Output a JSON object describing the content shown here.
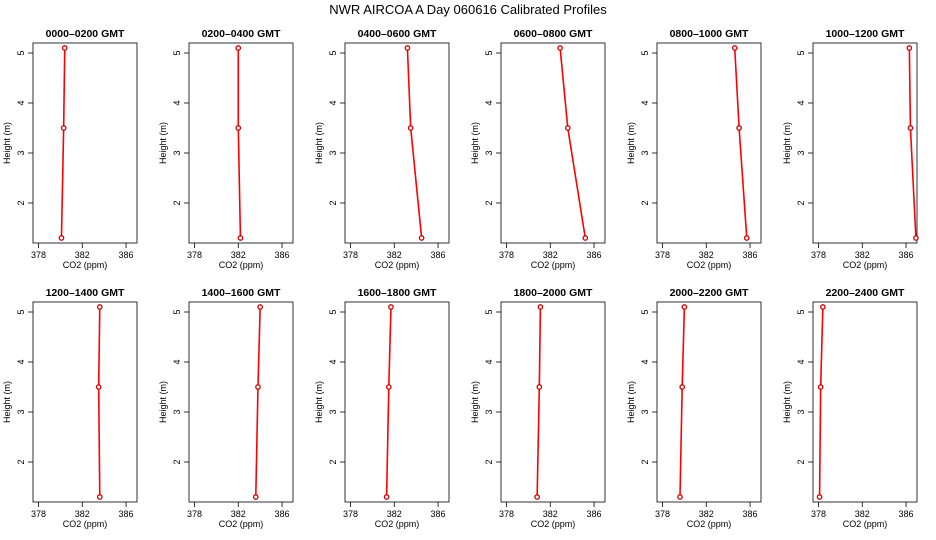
{
  "title": "NWR AIRCOA A  Day 060616  Calibrated Profiles",
  "colors": {
    "line": "#ff0000",
    "marker": "#cc0000",
    "axis": "#000000"
  },
  "chart_data": [
    {
      "type": "line",
      "title": "0000–0200 GMT",
      "xlabel": "CO2 (ppm)",
      "ylabel": "Height (m)",
      "xlim": [
        377.5,
        387
      ],
      "ylim": [
        1.2,
        5.2
      ],
      "xticks": [
        378,
        382,
        386
      ],
      "xtick_labels": [
        "378",
        "382",
        "386"
      ],
      "yticks": [
        2,
        3,
        4,
        5
      ],
      "ytick_labels": [
        "2",
        "3",
        "4",
        "5"
      ],
      "grid": false,
      "points": [
        {
          "x": 380.1,
          "y": 1.3
        },
        {
          "x": 380.3,
          "y": 3.5
        },
        {
          "x": 380.4,
          "y": 5.1
        }
      ]
    },
    {
      "type": "line",
      "title": "0200–0400 GMT",
      "xlabel": "CO2 (ppm)",
      "ylabel": "Height (m)",
      "xlim": [
        377.5,
        387
      ],
      "ylim": [
        1.2,
        5.2
      ],
      "xticks": [
        378,
        382,
        386
      ],
      "xtick_labels": [
        "378",
        "382",
        "386"
      ],
      "yticks": [
        2,
        3,
        4,
        5
      ],
      "ytick_labels": [
        "2",
        "3",
        "4",
        "5"
      ],
      "grid": false,
      "points": [
        {
          "x": 382.2,
          "y": 1.3
        },
        {
          "x": 382.0,
          "y": 3.5
        },
        {
          "x": 382.0,
          "y": 5.1
        }
      ]
    },
    {
      "type": "line",
      "title": "0400–0600 GMT",
      "xlabel": "CO2 (ppm)",
      "ylabel": "Height (m)",
      "xlim": [
        377.5,
        387
      ],
      "ylim": [
        1.2,
        5.2
      ],
      "xticks": [
        378,
        382,
        386
      ],
      "xtick_labels": [
        "378",
        "382",
        "386"
      ],
      "yticks": [
        2,
        3,
        4,
        5
      ],
      "ytick_labels": [
        "2",
        "3",
        "4",
        "5"
      ],
      "grid": false,
      "points": [
        {
          "x": 384.5,
          "y": 1.3
        },
        {
          "x": 383.5,
          "y": 3.5
        },
        {
          "x": 383.2,
          "y": 5.1
        }
      ]
    },
    {
      "type": "line",
      "title": "0600–0800 GMT",
      "xlabel": "CO2 (ppm)",
      "ylabel": "Height (m)",
      "xlim": [
        377.5,
        387
      ],
      "ylim": [
        1.2,
        5.2
      ],
      "xticks": [
        378,
        382,
        386
      ],
      "xtick_labels": [
        "378",
        "382",
        "386"
      ],
      "yticks": [
        2,
        3,
        4,
        5
      ],
      "ytick_labels": [
        "2",
        "3",
        "4",
        "5"
      ],
      "grid": false,
      "points": [
        {
          "x": 385.2,
          "y": 1.3
        },
        {
          "x": 383.6,
          "y": 3.5
        },
        {
          "x": 382.9,
          "y": 5.1
        }
      ]
    },
    {
      "type": "line",
      "title": "0800–1000 GMT",
      "xlabel": "CO2 (ppm)",
      "ylabel": "Height (m)",
      "xlim": [
        377.5,
        387
      ],
      "ylim": [
        1.2,
        5.2
      ],
      "xticks": [
        378,
        382,
        386
      ],
      "xtick_labels": [
        "378",
        "382",
        "386"
      ],
      "yticks": [
        2,
        3,
        4,
        5
      ],
      "ytick_labels": [
        "2",
        "3",
        "4",
        "5"
      ],
      "grid": false,
      "points": [
        {
          "x": 385.7,
          "y": 1.3
        },
        {
          "x": 385.0,
          "y": 3.5
        },
        {
          "x": 384.6,
          "y": 5.1
        }
      ]
    },
    {
      "type": "line",
      "title": "1000–1200 GMT",
      "xlabel": "CO2 (ppm)",
      "ylabel": "Height (m)",
      "xlim": [
        377.5,
        387
      ],
      "ylim": [
        1.2,
        5.2
      ],
      "xticks": [
        378,
        382,
        386
      ],
      "xtick_labels": [
        "378",
        "382",
        "386"
      ],
      "yticks": [
        2,
        3,
        4,
        5
      ],
      "ytick_labels": [
        "2",
        "3",
        "4",
        "5"
      ],
      "grid": false,
      "points": [
        {
          "x": 386.9,
          "y": 1.3
        },
        {
          "x": 386.4,
          "y": 3.5
        },
        {
          "x": 386.3,
          "y": 5.1
        }
      ]
    },
    {
      "type": "line",
      "title": "1200–1400 GMT",
      "xlabel": "CO2 (ppm)",
      "ylabel": "Height (m)",
      "xlim": [
        377.5,
        387
      ],
      "ylim": [
        1.2,
        5.2
      ],
      "xticks": [
        378,
        382,
        386
      ],
      "xtick_labels": [
        "378",
        "382",
        "386"
      ],
      "yticks": [
        2,
        3,
        4,
        5
      ],
      "ytick_labels": [
        "2",
        "3",
        "4",
        "5"
      ],
      "grid": false,
      "points": [
        {
          "x": 383.6,
          "y": 1.3
        },
        {
          "x": 383.5,
          "y": 3.5
        },
        {
          "x": 383.6,
          "y": 5.1
        }
      ]
    },
    {
      "type": "line",
      "title": "1400–1600 GMT",
      "xlabel": "CO2 (ppm)",
      "ylabel": "Height (m)",
      "xlim": [
        377.5,
        387
      ],
      "ylim": [
        1.2,
        5.2
      ],
      "xticks": [
        378,
        382,
        386
      ],
      "xtick_labels": [
        "378",
        "382",
        "386"
      ],
      "yticks": [
        2,
        3,
        4,
        5
      ],
      "ytick_labels": [
        "2",
        "3",
        "4",
        "5"
      ],
      "grid": false,
      "points": [
        {
          "x": 383.6,
          "y": 1.3
        },
        {
          "x": 383.8,
          "y": 3.5
        },
        {
          "x": 384.0,
          "y": 5.1
        }
      ]
    },
    {
      "type": "line",
      "title": "1600–1800 GMT",
      "xlabel": "CO2 (ppm)",
      "ylabel": "Height (m)",
      "xlim": [
        377.5,
        387
      ],
      "ylim": [
        1.2,
        5.2
      ],
      "xticks": [
        378,
        382,
        386
      ],
      "xtick_labels": [
        "378",
        "382",
        "386"
      ],
      "yticks": [
        2,
        3,
        4,
        5
      ],
      "ytick_labels": [
        "2",
        "3",
        "4",
        "5"
      ],
      "grid": false,
      "points": [
        {
          "x": 381.3,
          "y": 1.3
        },
        {
          "x": 381.5,
          "y": 3.5
        },
        {
          "x": 381.7,
          "y": 5.1
        }
      ]
    },
    {
      "type": "line",
      "title": "1800–2000 GMT",
      "xlabel": "CO2 (ppm)",
      "ylabel": "Height (m)",
      "xlim": [
        377.5,
        387
      ],
      "ylim": [
        1.2,
        5.2
      ],
      "xticks": [
        378,
        382,
        386
      ],
      "xtick_labels": [
        "378",
        "382",
        "386"
      ],
      "yticks": [
        2,
        3,
        4,
        5
      ],
      "ytick_labels": [
        "2",
        "3",
        "4",
        "5"
      ],
      "grid": false,
      "points": [
        {
          "x": 380.8,
          "y": 1.3
        },
        {
          "x": 381.0,
          "y": 3.5
        },
        {
          "x": 381.1,
          "y": 5.1
        }
      ]
    },
    {
      "type": "line",
      "title": "2000–2200 GMT",
      "xlabel": "CO2 (ppm)",
      "ylabel": "Height (m)",
      "xlim": [
        377.5,
        387
      ],
      "ylim": [
        1.2,
        5.2
      ],
      "xticks": [
        378,
        382,
        386
      ],
      "xtick_labels": [
        "378",
        "382",
        "386"
      ],
      "yticks": [
        2,
        3,
        4,
        5
      ],
      "ytick_labels": [
        "2",
        "3",
        "4",
        "5"
      ],
      "grid": false,
      "points": [
        {
          "x": 379.6,
          "y": 1.3
        },
        {
          "x": 379.8,
          "y": 3.5
        },
        {
          "x": 380.0,
          "y": 5.1
        }
      ]
    },
    {
      "type": "line",
      "title": "2200–2400 GMT",
      "xlabel": "CO2 (ppm)",
      "ylabel": "Height (m)",
      "xlim": [
        377.5,
        387
      ],
      "ylim": [
        1.2,
        5.2
      ],
      "xticks": [
        378,
        382,
        386
      ],
      "xtick_labels": [
        "378",
        "382",
        "386"
      ],
      "yticks": [
        2,
        3,
        4,
        5
      ],
      "ytick_labels": [
        "2",
        "3",
        "4",
        "5"
      ],
      "grid": false,
      "points": [
        {
          "x": 378.1,
          "y": 1.3
        },
        {
          "x": 378.2,
          "y": 3.5
        },
        {
          "x": 378.4,
          "y": 5.1
        }
      ]
    }
  ]
}
